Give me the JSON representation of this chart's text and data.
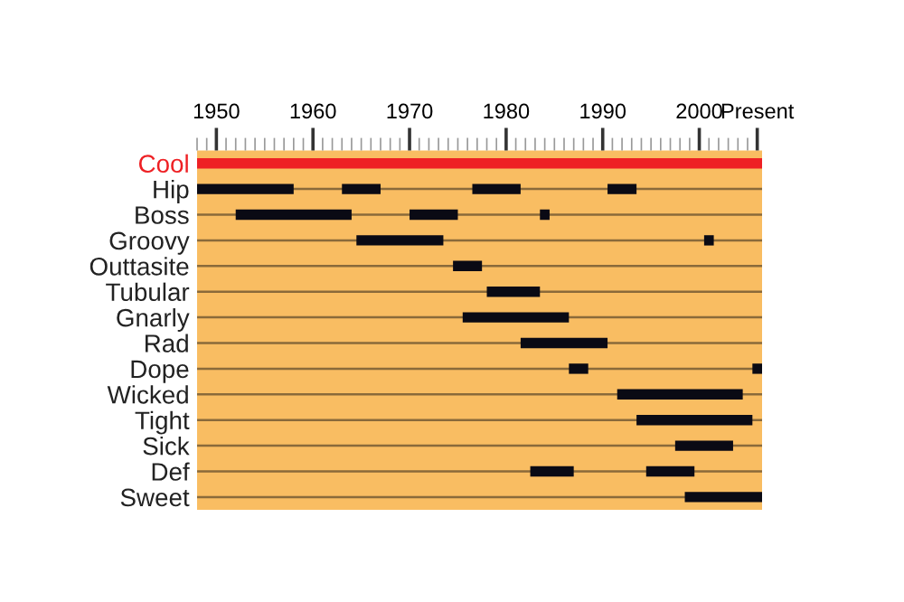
{
  "chart_data": {
    "type": "bar",
    "orientation": "horizontal",
    "categories": [
      "Cool",
      "Hip",
      "Boss",
      "Groovy",
      "Outtasite",
      "Tubular",
      "Gnarly",
      "Rad",
      "Dope",
      "Wicked",
      "Tight",
      "Sick",
      "Def",
      "Sweet"
    ],
    "series": [
      {
        "colors": [
          "#ee2024",
          "#0a0a14",
          "#0a0a14",
          "#0a0a14",
          "#0a0a14",
          "#0a0a14",
          "#0a0a14",
          "#0a0a14",
          "#0a0a14",
          "#0a0a14",
          "#0a0a14",
          "#0a0a14",
          "#0a0a14",
          "#0a0a14"
        ],
        "base": [
          1948,
          1948,
          1952,
          1964.5,
          1974.5,
          1978,
          1975.5,
          1981.5,
          1986.5,
          1991.5,
          1993.5,
          1997.5,
          1982.5,
          1998.5
        ],
        "values": [
          58.5,
          10,
          12,
          9,
          3,
          5.5,
          11,
          9,
          2,
          13,
          12,
          6,
          4.5,
          8
        ]
      },
      {
        "color": "#0a0a14",
        "base": [
          null,
          1963,
          1970,
          2000.5,
          null,
          null,
          null,
          null,
          2005.5,
          null,
          null,
          null,
          1994.5,
          null
        ],
        "values": [
          null,
          4,
          5,
          1,
          null,
          null,
          null,
          null,
          1,
          null,
          null,
          null,
          5,
          null
        ]
      },
      {
        "color": "#0a0a14",
        "base": [
          null,
          1976.5,
          1983.5,
          null,
          null,
          null,
          null,
          null,
          null,
          null,
          null,
          null,
          null,
          null
        ],
        "values": [
          null,
          5,
          1,
          null,
          null,
          null,
          null,
          null,
          null,
          null,
          null,
          null,
          null,
          null
        ]
      },
      {
        "color": "#0a0a14",
        "base": [
          null,
          1990.5,
          null,
          null,
          null,
          null,
          null,
          null,
          null,
          null,
          null,
          null,
          null,
          null
        ],
        "values": [
          null,
          3,
          null,
          null,
          null,
          null,
          null,
          null,
          null,
          null,
          null,
          null,
          null,
          null
        ]
      }
    ],
    "xlim": [
      1948,
      2006.5
    ],
    "xticks": [
      {
        "value": 1948,
        "label": null
      },
      {
        "value": 1949,
        "label": null
      },
      1950,
      {
        "value": 1951,
        "label": null
      },
      {
        "value": 1952,
        "label": null
      },
      {
        "value": 1953,
        "label": null
      },
      {
        "value": 1954,
        "label": null
      },
      {
        "value": 1955,
        "label": null
      },
      {
        "value": 1956,
        "label": null
      },
      {
        "value": 1957,
        "label": null
      },
      {
        "value": 1958,
        "label": null
      },
      {
        "value": 1959,
        "label": null
      },
      1960,
      {
        "value": 1961,
        "label": null
      },
      {
        "value": 1962,
        "label": null
      },
      {
        "value": 1963,
        "label": null
      },
      {
        "value": 1964,
        "label": null
      },
      {
        "value": 1965,
        "label": null
      },
      {
        "value": 1966,
        "label": null
      },
      {
        "value": 1967,
        "label": null
      },
      {
        "value": 1968,
        "label": null
      },
      {
        "value": 1969,
        "label": null
      },
      1970,
      {
        "value": 1971,
        "label": null
      },
      {
        "value": 1972,
        "label": null
      },
      {
        "value": 1973,
        "label": null
      },
      {
        "value": 1974,
        "label": null
      },
      {
        "value": 1975,
        "label": null
      },
      {
        "value": 1976,
        "label": null
      },
      {
        "value": 1977,
        "label": null
      },
      {
        "value": 1978,
        "label": null
      },
      {
        "value": 1979,
        "label": null
      },
      1980,
      {
        "value": 1981,
        "label": null
      },
      {
        "value": 1982,
        "label": null
      },
      {
        "value": 1983,
        "label": null
      },
      {
        "value": 1984,
        "label": null
      },
      {
        "value": 1985,
        "label": null
      },
      {
        "value": 1986,
        "label": null
      },
      {
        "value": 1987,
        "label": null
      },
      {
        "value": 1988,
        "label": null
      },
      {
        "value": 1989,
        "label": null
      },
      1990,
      {
        "value": 1991,
        "label": null
      },
      {
        "value": 1992,
        "label": null
      },
      {
        "value": 1993,
        "label": null
      },
      {
        "value": 1994,
        "label": null
      },
      {
        "value": 1995,
        "label": null
      },
      {
        "value": 1996,
        "label": null
      },
      {
        "value": 1997,
        "label": null
      },
      {
        "value": 1998,
        "label": null
      },
      {
        "value": 1999,
        "label": null
      },
      2000,
      {
        "value": 2001,
        "label": null
      },
      {
        "value": 2002,
        "label": null
      },
      {
        "value": 2003,
        "label": null
      },
      {
        "value": 2004,
        "label": null
      },
      {
        "value": 2005,
        "label": null
      },
      {
        "value": 2006,
        "label": "Present"
      }
    ],
    "grid": "y"
  }
}
